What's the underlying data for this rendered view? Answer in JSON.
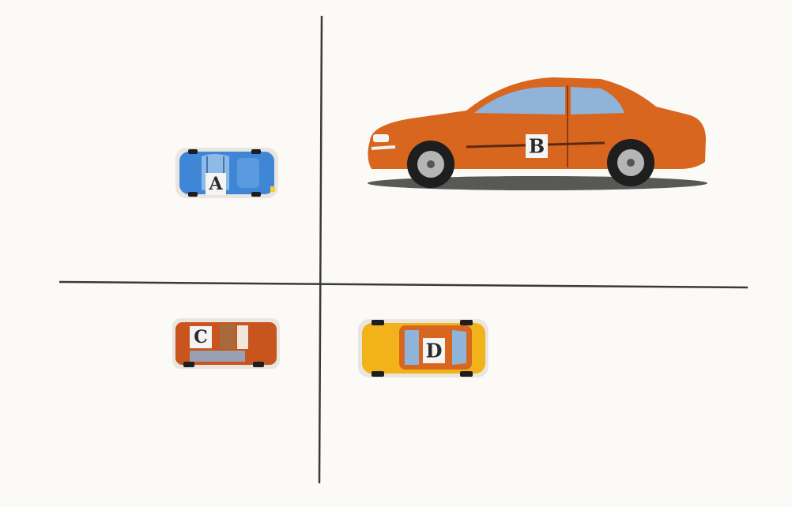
{
  "cars": {
    "a": {
      "label": "A",
      "view": "top",
      "color": "#3f86d6"
    },
    "b": {
      "label": "B",
      "view": "side",
      "color": "#d9661f"
    },
    "c": {
      "label": "C",
      "view": "top",
      "color": "#c8541e"
    },
    "d": {
      "label": "D",
      "view": "top",
      "color": "#f2b21a"
    }
  },
  "colors": {
    "axis": "#3a3a3a",
    "background": "#fbfaf7",
    "tire": "#1e1e1e",
    "glass": "#8fb3d9"
  }
}
